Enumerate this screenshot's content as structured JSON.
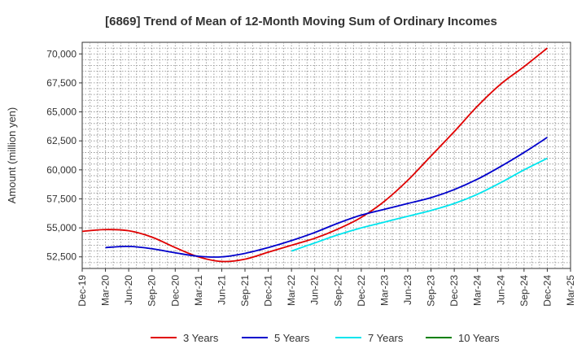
{
  "chart_data": {
    "type": "line",
    "title": "[6869]  Trend of Mean of 12-Month Moving Sum of Ordinary Incomes",
    "xlabel": "",
    "ylabel": "Amount (million yen)",
    "ylim": [
      51500,
      71000
    ],
    "yticks": [
      52500,
      55000,
      57500,
      60000,
      62500,
      65000,
      67500,
      70000
    ],
    "ytick_labels": [
      "52,500",
      "55,000",
      "57,500",
      "60,000",
      "62,500",
      "65,000",
      "67,500",
      "70,000"
    ],
    "categories": [
      "Dec-19",
      "Mar-20",
      "Jun-20",
      "Sep-20",
      "Dec-20",
      "Mar-21",
      "Jun-21",
      "Sep-21",
      "Dec-21",
      "Mar-22",
      "Jun-22",
      "Sep-22",
      "Dec-22",
      "Mar-23",
      "Jun-23",
      "Sep-23",
      "Dec-23",
      "Mar-24",
      "Jun-24",
      "Sep-24",
      "Dec-24",
      "Mar-25"
    ],
    "grid": true,
    "legend_position": "bottom",
    "series": [
      {
        "name": "3 Years",
        "color": "#e00000",
        "values": [
          54700,
          54850,
          54750,
          54200,
          53300,
          52500,
          52100,
          52300,
          52900,
          53500,
          54100,
          54900,
          55900,
          57300,
          59100,
          61200,
          63300,
          65500,
          67400,
          68900,
          70500,
          null
        ]
      },
      {
        "name": "5 Years",
        "color": "#0000cc",
        "values": [
          null,
          53300,
          53400,
          53200,
          52850,
          52550,
          52500,
          52800,
          53300,
          53900,
          54600,
          55400,
          56100,
          56600,
          57100,
          57600,
          58300,
          59200,
          60300,
          61500,
          62800,
          null
        ]
      },
      {
        "name": "7 Years",
        "color": "#00e5ee",
        "values": [
          null,
          null,
          null,
          null,
          null,
          null,
          null,
          null,
          null,
          53000,
          53700,
          54400,
          55000,
          55500,
          56000,
          56500,
          57100,
          57900,
          58900,
          60000,
          61000,
          null
        ]
      },
      {
        "name": "10 Years",
        "color": "#008000",
        "values": [
          null,
          null,
          null,
          null,
          null,
          null,
          null,
          null,
          null,
          null,
          null,
          null,
          null,
          null,
          null,
          null,
          null,
          null,
          null,
          null,
          null,
          null
        ]
      }
    ]
  }
}
